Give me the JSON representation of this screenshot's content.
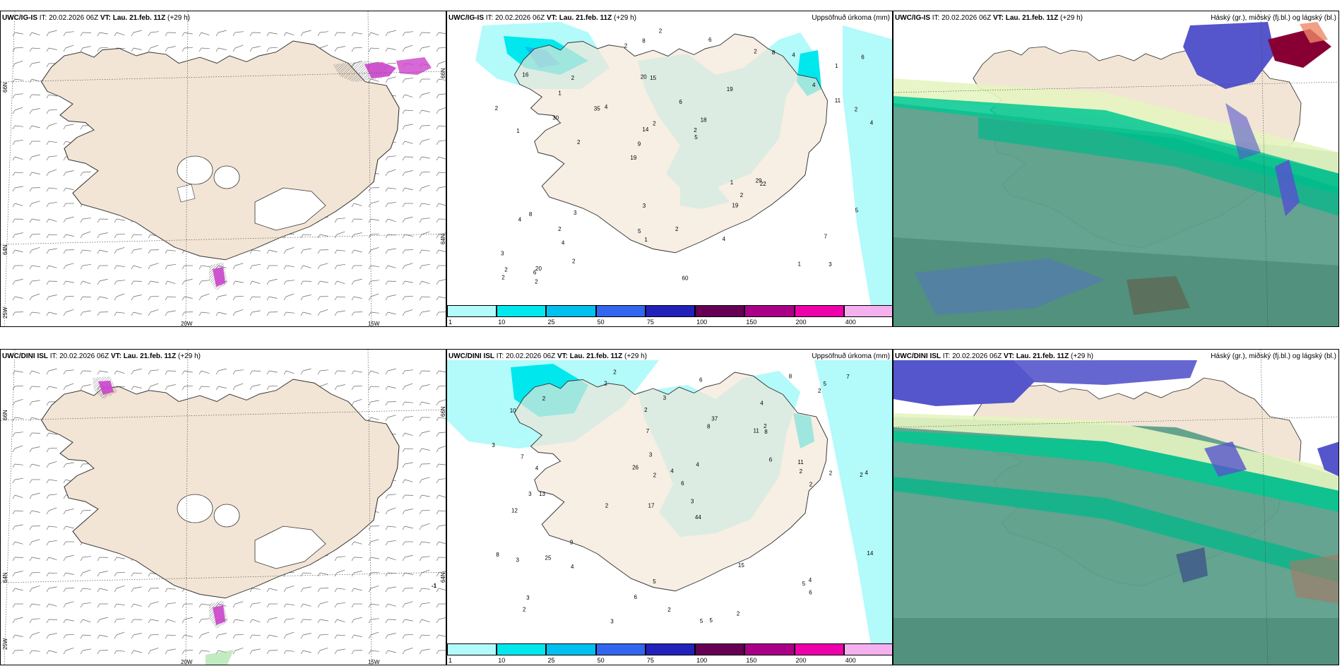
{
  "panels": {
    "ig_wind": {
      "model": "UWC/IG-IS",
      "it_label": "IT:",
      "it_value": "20.02.2026 06Z",
      "vt_label": "VT:",
      "vt_value": "Lau. 21.feb. 11Z",
      "lead": "(+29 h)",
      "lon_labels": [
        "20W",
        "15W"
      ],
      "lat_labels": [
        "66N",
        "64N",
        "25W"
      ],
      "right_labels": [
        "66N",
        "64N"
      ]
    },
    "ig_precip": {
      "model": "UWC/IG-IS",
      "it_label": "IT:",
      "it_value": "20.02.2026 06Z",
      "vt_label": "VT:",
      "vt_value": "Lau. 21.feb. 11Z",
      "lead": "(+29 h)",
      "field_title": "Uppsöfnuð úrkoma (mm)",
      "values": [
        "3",
        "1",
        "1",
        "19",
        "19",
        "20",
        "20",
        "6",
        "8",
        "4",
        "3",
        "4",
        "15",
        "18",
        "22",
        "16",
        "8",
        "4",
        "1",
        "11",
        "9",
        "5",
        "14",
        "2",
        "2",
        "3",
        "1",
        "7",
        "29",
        "60",
        "35",
        "30",
        "19",
        "2",
        "2",
        "2",
        "2",
        "1",
        "5",
        "4",
        "4",
        "6",
        "2",
        "4",
        "2",
        "2",
        "2",
        "2",
        "4",
        "2",
        "2",
        "2",
        "1",
        "8",
        "6",
        "6",
        "2",
        "2",
        "5",
        "3"
      ]
    },
    "ig_cloud": {
      "model": "UWC/IG-IS",
      "it_label": "IT:",
      "it_value": "20.02.2026 06Z",
      "vt_label": "VT:",
      "vt_value": "Lau. 21.feb. 11Z",
      "lead": "(+29 h)",
      "field_title": "Háský (gr.), miðský (fj.bl.) og lágský (bl.)"
    },
    "dini_wind": {
      "model": "UWC/DINI ISL",
      "it_label": "IT:",
      "it_value": "20.02.2026 06Z",
      "vt_label": "VT:",
      "vt_value": "Lau. 21.feb. 11Z",
      "lead": "(+29 h)",
      "lon_labels": [
        "20W",
        "15W"
      ],
      "lat_labels": [
        "66N",
        "64N",
        "25W"
      ],
      "right_labels": [
        "66N",
        "64N"
      ],
      "edge_value": "-1"
    },
    "dini_precip": {
      "model": "UWC/DINI ISL",
      "it_label": "IT:",
      "it_value": "20.02.2026 06Z",
      "vt_label": "VT:",
      "vt_value": "Lau. 21.feb. 11Z",
      "lead": "(+29 h)",
      "field_title": "Uppsöfnuð úrkoma (mm)",
      "values": [
        "2",
        "4",
        "2",
        "17",
        "44",
        "13",
        "10",
        "11",
        "12",
        "8",
        "6",
        "2",
        "2",
        "2",
        "5",
        "5",
        "5",
        "8",
        "6",
        "9",
        "4",
        "3",
        "4",
        "2",
        "8",
        "7",
        "2",
        "2",
        "4",
        "3",
        "5",
        "37",
        "25",
        "26",
        "15",
        "14",
        "11",
        "6",
        "7",
        "3",
        "3",
        "3",
        "2",
        "2",
        "2",
        "8",
        "6",
        "2",
        "3",
        "3",
        "2",
        "2",
        "4",
        "2",
        "6",
        "4",
        "3",
        "4",
        "5",
        "7"
      ]
    },
    "dini_cloud": {
      "model": "UWC/DINI ISL",
      "it_label": "IT:",
      "it_value": "20.02.2026 06Z",
      "vt_label": "VT:",
      "vt_value": "Lau. 21.feb. 11Z",
      "lead": "(+29 h)",
      "field_title": "Háský (gr.), miðský (fj.bl.) og lágský (bl.)"
    }
  },
  "legend": {
    "ticks": [
      "1",
      "10",
      "25",
      "50",
      "75",
      "100",
      "150",
      "200",
      "400"
    ],
    "colors": [
      "#b3fafa",
      "#00e8ee",
      "#00c0f0",
      "#3366ee",
      "#2222bb",
      "#660055",
      "#aa0088",
      "#ee00aa",
      "#f5b0f0"
    ]
  },
  "colors": {
    "land": "#f2e5d5",
    "precip_light": "#b3fafa",
    "precip_mid": "#00e8ee",
    "cloud_low": "#5c9f8a",
    "cloud_low2": "#4f8f7c",
    "cloud_mid": "#00c890",
    "cloud_high": "#e6f4c0",
    "cloud_blue": "#5555cc",
    "cloud_red": "#880033"
  }
}
